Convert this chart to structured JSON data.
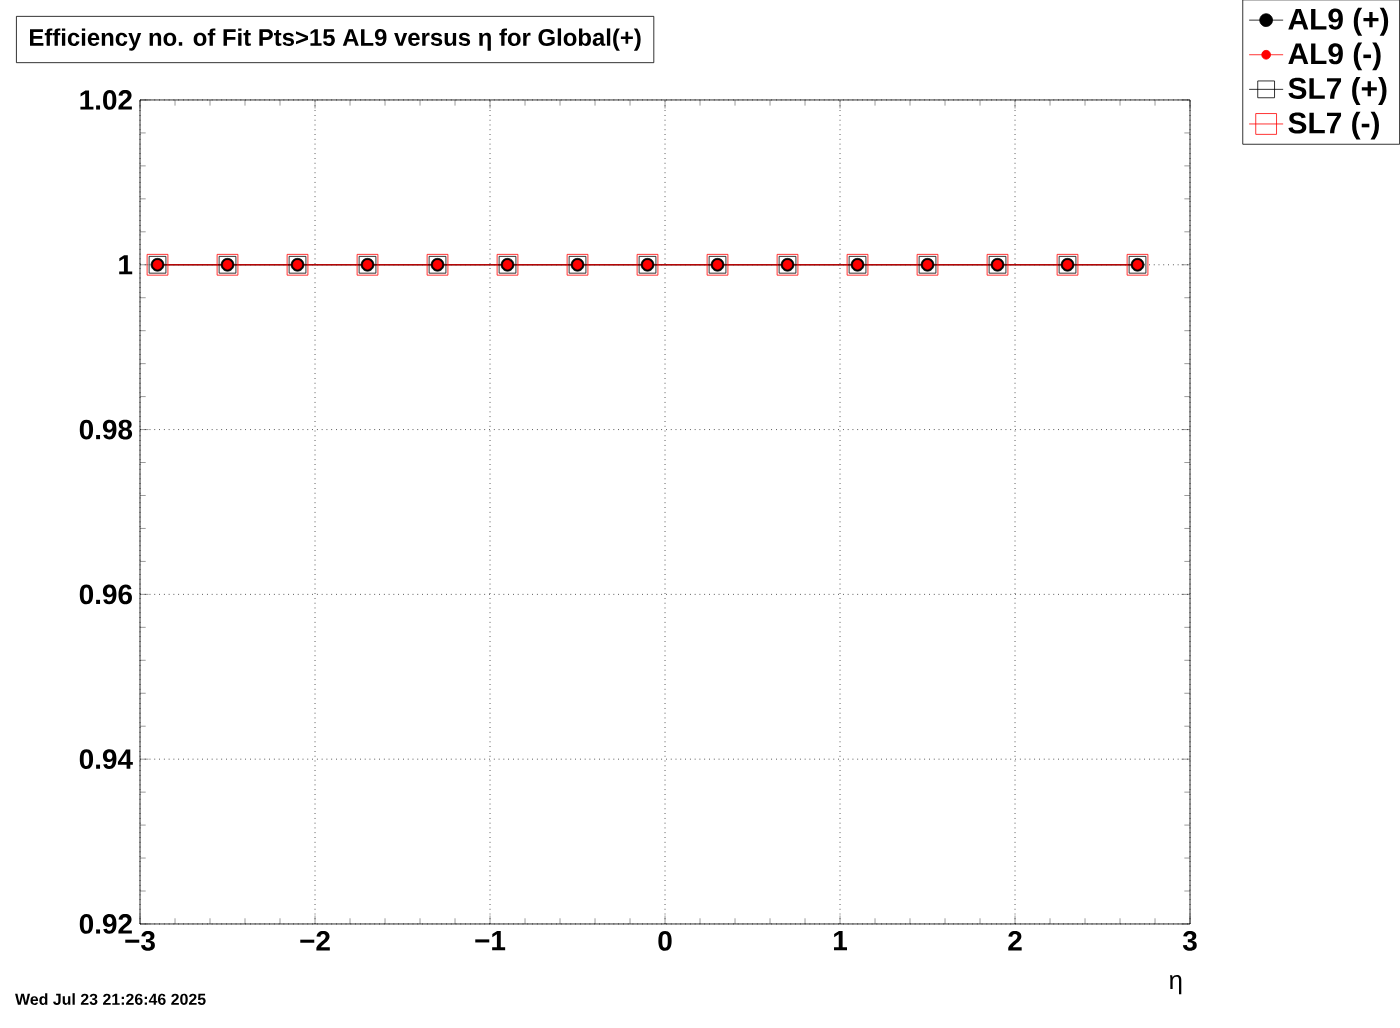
{
  "chart_data": {
    "type": "line",
    "title": "Efficiency no. of Fit Pts>15 AL9 versus η for Global(+)",
    "xlabel": "η",
    "x": [
      -2.9,
      -2.5,
      -2.1,
      -1.7,
      -1.3,
      -0.9,
      -0.5,
      -0.1,
      0.3,
      0.7,
      1.1,
      1.5,
      1.9,
      2.3,
      2.7
    ],
    "series": [
      {
        "name": "AL9 (+)",
        "color": "#000000",
        "marker": "circle",
        "values": [
          1,
          1,
          1,
          1,
          1,
          1,
          1,
          1,
          1,
          1,
          1,
          1,
          1,
          1,
          1
        ]
      },
      {
        "name": "AL9 (-)",
        "color": "#ff0000",
        "marker": "circle",
        "values": [
          1,
          1,
          1,
          1,
          1,
          1,
          1,
          1,
          1,
          1,
          1,
          1,
          1,
          1,
          1
        ]
      },
      {
        "name": "SL7 (+)",
        "color": "#000000",
        "marker": "square",
        "values": [
          1,
          1,
          1,
          1,
          1,
          1,
          1,
          1,
          1,
          1,
          1,
          1,
          1,
          1,
          1
        ]
      },
      {
        "name": "SL7 (-)",
        "color": "#ff0000",
        "marker": "square",
        "values": [
          1,
          1,
          1,
          1,
          1,
          1,
          1,
          1,
          1,
          1,
          1,
          1,
          1,
          1,
          1
        ]
      }
    ],
    "xlim": [
      -3,
      3
    ],
    "xticks": [
      {
        "value": -3,
        "label": "−3"
      },
      {
        "value": -2,
        "label": "−2"
      },
      {
        "value": -1,
        "label": "−1"
      },
      0,
      1,
      2,
      3
    ],
    "ylim": [
      0.92,
      1.02
    ],
    "yticks": [
      0.92,
      0.94,
      0.96,
      0.98,
      1,
      1.02
    ],
    "grid": true,
    "legend": "top right",
    "line_style": "solid",
    "annotations": [
      "Wed Jul 23 21:26:46 2025"
    ]
  }
}
